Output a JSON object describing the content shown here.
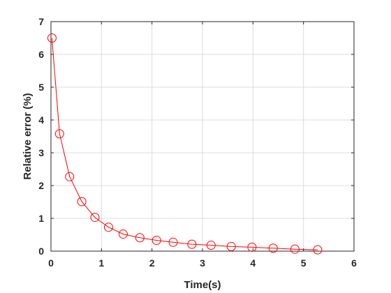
{
  "chart_data": {
    "type": "line",
    "title": "",
    "xlabel": "Time(s)",
    "ylabel": "Relative error (%)",
    "xlim": [
      0,
      6
    ],
    "ylim": [
      0,
      7
    ],
    "x_ticks": [
      "0",
      "1",
      "2",
      "3",
      "4",
      "5",
      "6"
    ],
    "y_ticks": [
      "0",
      "1",
      "2",
      "3",
      "4",
      "5",
      "6",
      "7"
    ],
    "grid": true,
    "series": [
      {
        "marker": "circle",
        "color": "#ff0000",
        "x": [
          0.02,
          0.17,
          0.37,
          0.61,
          0.87,
          1.14,
          1.43,
          1.76,
          2.09,
          2.42,
          2.79,
          3.17,
          3.57,
          3.98,
          4.4,
          4.83,
          5.28
        ],
        "y": [
          6.5,
          3.58,
          2.27,
          1.51,
          1.03,
          0.73,
          0.52,
          0.41,
          0.33,
          0.27,
          0.21,
          0.18,
          0.14,
          0.12,
          0.09,
          0.06,
          0.04
        ]
      }
    ]
  }
}
